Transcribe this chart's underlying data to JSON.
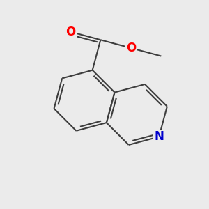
{
  "background_color": "#ebebeb",
  "bond_color": "#3d3d3d",
  "bond_width": 1.5,
  "atom_colors": {
    "O": "#ff0000",
    "N": "#0000cc",
    "C": "#3d3d3d"
  },
  "font_size": 12,
  "figsize": [
    3.0,
    3.0
  ],
  "dpi": 100
}
